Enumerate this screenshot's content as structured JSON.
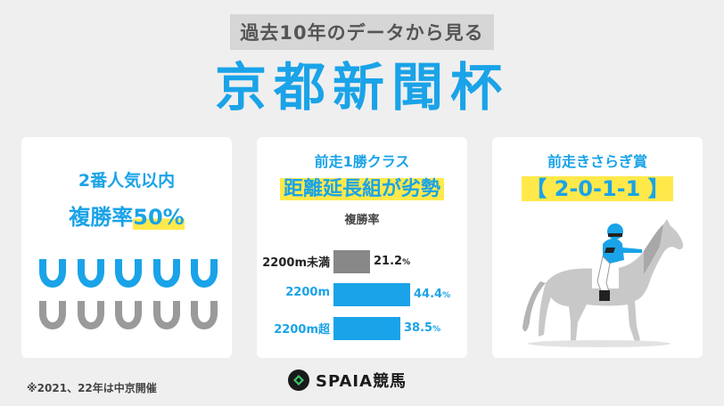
{
  "header": {
    "banner": "過去10年のデータから見る",
    "title": "京都新聞杯"
  },
  "card1": {
    "line1": "2番人気以内",
    "line2_prefix": "複勝率",
    "line2_highlight": "50%",
    "wins": 5,
    "total": 10,
    "colors": {
      "hit": "#1aa3e8",
      "miss": "#9a9a9a"
    }
  },
  "card2": {
    "line1": "前走1勝クラス",
    "line2": "距離延長組が劣勢",
    "sub": "複勝率",
    "pct_unit": "%",
    "chart_data": {
      "type": "bar",
      "categories": [
        "2200m未満",
        "2200m",
        "2200m超"
      ],
      "values": [
        21.2,
        44.4,
        38.5
      ],
      "colors": [
        "#888888",
        "#1aa3e8",
        "#1aa3e8"
      ],
      "label_colors": [
        "#222222",
        "#1aa3e8",
        "#1aa3e8"
      ]
    }
  },
  "card3": {
    "line1": "前走きさらぎ賞",
    "line2": "【 2-0-1-1 】"
  },
  "footer": {
    "note": "※2021、22年は中京開催",
    "logo": "SPAIA競馬"
  },
  "colors": {
    "accent": "#1aa3e8",
    "highlight": "#ffe94a"
  }
}
